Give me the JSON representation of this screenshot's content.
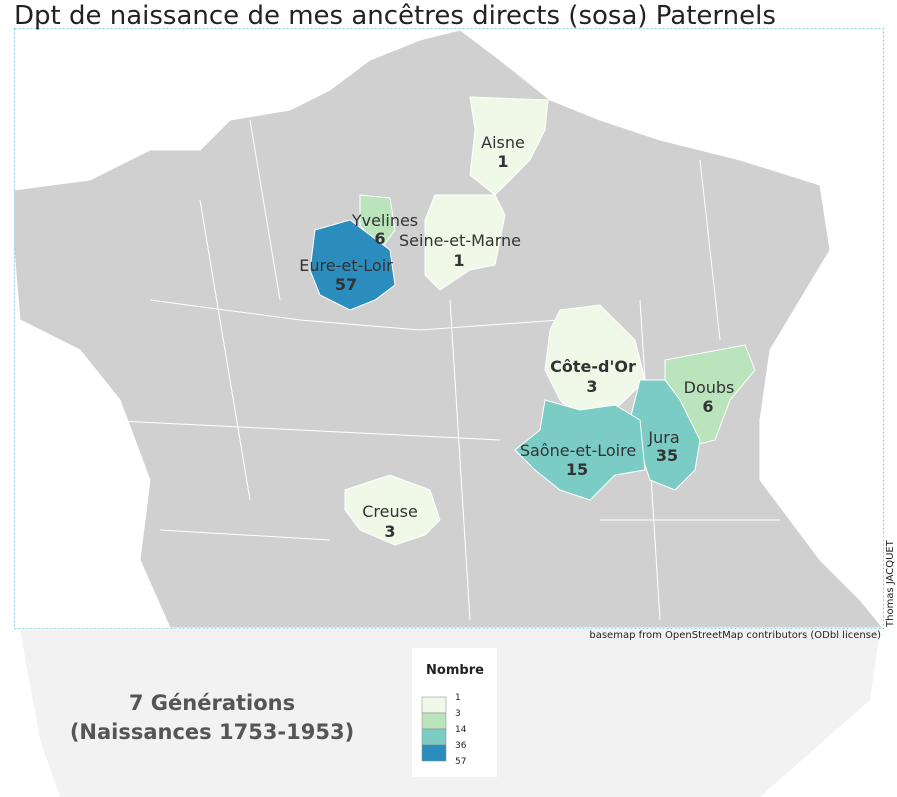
{
  "title": "Dpt de naissance de mes ancêtres directs (sosa) Paternels",
  "regions": [
    {
      "name": "Aisne",
      "value": 1
    },
    {
      "name": "Yvelines",
      "value": 6
    },
    {
      "name": "Seine-et-Marne",
      "value": 1
    },
    {
      "name": "Eure-et-Loir",
      "value": 57
    },
    {
      "name": "Côte-d'Or",
      "value": 3
    },
    {
      "name": "Doubs",
      "value": 6
    },
    {
      "name": "Jura",
      "value": 35
    },
    {
      "name": "Saône-et-Loire",
      "value": 15
    },
    {
      "name": "Creuse",
      "value": 3
    }
  ],
  "legend": {
    "title": "Nombre",
    "breaks": [
      1,
      3,
      14,
      36,
      57
    ],
    "colors": [
      "#f0f9e8",
      "#bae4bc",
      "#7bccc4",
      "#2b8cbe"
    ]
  },
  "credit": "basemap from OpenStreetMap contributors (ODbl license)",
  "author": "Thomas JACQUET",
  "note": [
    "7 Générations",
    "(Naissances 1753-1953)"
  ]
}
